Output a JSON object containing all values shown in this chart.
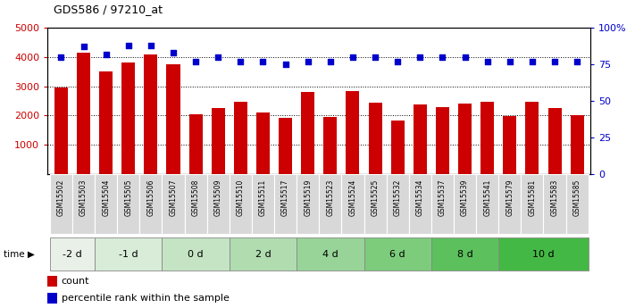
{
  "title": "GDS586 / 97210_at",
  "samples": [
    "GSM15502",
    "GSM15503",
    "GSM15504",
    "GSM15505",
    "GSM15506",
    "GSM15507",
    "GSM15508",
    "GSM15509",
    "GSM15510",
    "GSM15511",
    "GSM15517",
    "GSM15519",
    "GSM15523",
    "GSM15524",
    "GSM15525",
    "GSM15532",
    "GSM15534",
    "GSM15537",
    "GSM15539",
    "GSM15541",
    "GSM15579",
    "GSM15581",
    "GSM15583",
    "GSM15585"
  ],
  "counts": [
    2950,
    4150,
    3520,
    3820,
    4100,
    3750,
    2030,
    2270,
    2480,
    2100,
    1920,
    2790,
    1960,
    2820,
    2440,
    1840,
    2390,
    2280,
    2420,
    2470,
    1990,
    2460,
    2250,
    2020
  ],
  "percentiles": [
    80,
    87,
    82,
    88,
    88,
    83,
    77,
    80,
    77,
    77,
    75,
    77,
    77,
    80,
    80,
    77,
    80,
    80,
    80,
    77,
    77,
    77,
    77,
    77
  ],
  "time_groups": [
    {
      "label": "-2 d",
      "start": 0,
      "end": 2,
      "color": "#e8f0e8"
    },
    {
      "label": "-1 d",
      "start": 2,
      "end": 5,
      "color": "#d8ecd8"
    },
    {
      "label": "0 d",
      "start": 5,
      "end": 8,
      "color": "#c4e4c4"
    },
    {
      "label": "2 d",
      "start": 8,
      "end": 11,
      "color": "#b0dcb0"
    },
    {
      "label": "4 d",
      "start": 11,
      "end": 14,
      "color": "#98d498"
    },
    {
      "label": "6 d",
      "start": 14,
      "end": 17,
      "color": "#7ccc7c"
    },
    {
      "label": "8 d",
      "start": 17,
      "end": 20,
      "color": "#5cc05c"
    },
    {
      "label": "10 d",
      "start": 20,
      "end": 24,
      "color": "#44b844"
    }
  ],
  "bar_color": "#cc0000",
  "dot_color": "#0000cc",
  "ylim_left": [
    0,
    5000
  ],
  "ylim_right": [
    0,
    100
  ],
  "yticks_left": [
    1000,
    2000,
    3000,
    4000,
    5000
  ],
  "yticks_right": [
    0,
    25,
    50,
    75,
    100
  ],
  "ylabel_right_labels": [
    "0",
    "25",
    "50",
    "75",
    "100%"
  ],
  "bg_color": "#ffffff",
  "xticklabel_bg": "#d8d8d8",
  "xticklabel_fontsize": 5.5,
  "tick_fontsize": 8
}
